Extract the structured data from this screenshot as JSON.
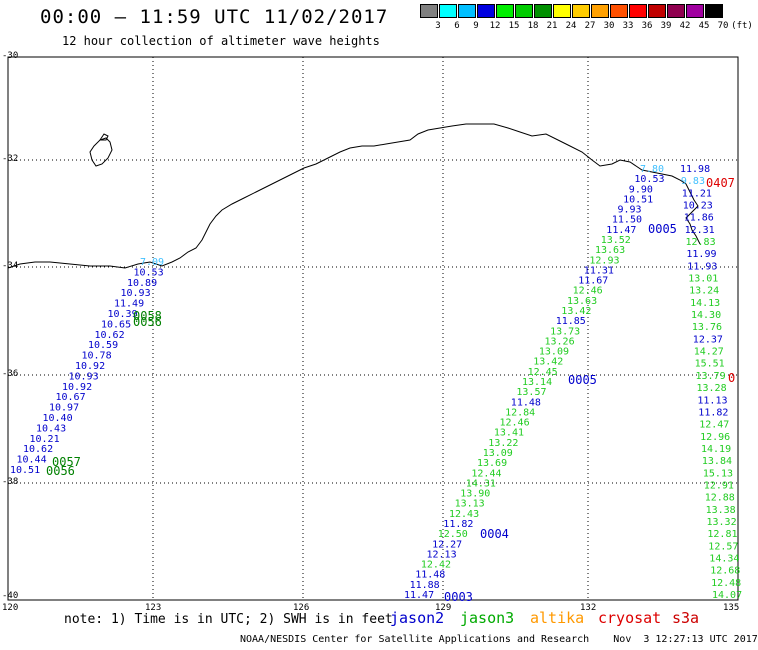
{
  "header": {
    "title": "00:00 – 11:59 UTC 11/02/2017",
    "subtitle": "12 hour collection of altimeter wave heights"
  },
  "color_scale": {
    "labels": [
      "3",
      "6",
      "9",
      "12",
      "15",
      "18",
      "21",
      "24",
      "27",
      "30",
      "33",
      "36",
      "39",
      "42",
      "45",
      "70",
      "(ft)"
    ],
    "colors": [
      "#808080",
      "#00ffff",
      "#00bfff",
      "#0000e0",
      "#00ee00",
      "#00cc00",
      "#009000",
      "#ffff00",
      "#ffcc00",
      "#ffa000",
      "#ff5000",
      "#ff0000",
      "#c00000",
      "#900050",
      "#a000a0",
      "#000000"
    ]
  },
  "axes": {
    "lat_labels": [
      "-30",
      "-32",
      "-34",
      "-36",
      "-38",
      "-40"
    ],
    "lon_labels": [
      "120",
      "123",
      "126",
      "129",
      "132",
      "135"
    ]
  },
  "tracks": [
    {
      "name": "west-track",
      "color": "#0000cc",
      "labels": [
        "7.09",
        "10.53",
        "10.89",
        "10.93",
        "11.49",
        "10.39",
        "10.65",
        "10.62",
        "10.59",
        "10.78",
        "10.92",
        "10.93",
        "10.92",
        "10.67",
        "10.97",
        "10.40",
        "10.43",
        "10.21",
        "10.62",
        "10.44",
        "10.51"
      ]
    },
    {
      "name": "mid-track",
      "color": "#0000cc",
      "labels": [
        "7.80",
        "10.53",
        "9.90",
        "10.51",
        "9.93",
        "11.50",
        "11.47",
        "13.52",
        "13.63",
        "12.93",
        "11.31",
        "11.67",
        "12.46",
        "13.63",
        "13.42",
        "11.85",
        "13.73",
        "13.26",
        "13.09",
        "13.42",
        "12.45",
        "13.14",
        "13.57",
        "11.48",
        "12.84",
        "12.46",
        "13.41",
        "13.22",
        "13.09",
        "13.69",
        "12.44",
        "14.31",
        "13.90",
        "13.13",
        "12.43",
        "11.82",
        "12.50",
        "12.27",
        "12.13",
        "12.42",
        "11.48",
        "11.88",
        "11.47"
      ]
    },
    {
      "name": "east-track",
      "color": "#0000cc",
      "labels": [
        "11.98",
        "9.83",
        "11.21",
        "10.23",
        "11.86",
        "12.31",
        "12.83",
        "11.99",
        "11.93",
        "13.01",
        "13.24",
        "14.13",
        "14.30",
        "13.76",
        "12.37",
        "14.27",
        "15.51",
        "13.79",
        "13.28",
        "11.13",
        "11.82",
        "12.47",
        "12.96",
        "14.19",
        "13.84",
        "15.13",
        "12.91",
        "12.88",
        "13.38",
        "13.32",
        "12.81",
        "12.57",
        "14.34",
        "12.68",
        "12.48",
        "14.07"
      ]
    }
  ],
  "time_tags": [
    {
      "text": "0058",
      "color": "#008000"
    },
    {
      "text": "0056",
      "color": "#008000"
    },
    {
      "text": "0057",
      "color": "#008000"
    },
    {
      "text": "0056",
      "color": "#008000"
    },
    {
      "text": "0005",
      "color": "#0000cc"
    },
    {
      "text": "0004",
      "color": "#0000cc"
    },
    {
      "text": "0003",
      "color": "#0000cc"
    },
    {
      "text": "0005",
      "color": "#0000cc"
    },
    {
      "text": "0407",
      "color": "#dd0000"
    },
    {
      "text": "0",
      "color": "#dd0000"
    }
  ],
  "footer": {
    "note": "note: 1) Time is in UTC; 2) SWH is in feet",
    "satellites": [
      {
        "name": "jason2",
        "color": "#0000cc"
      },
      {
        "name": "jason3",
        "color": "#00aa00"
      },
      {
        "name": "altika",
        "color": "#ff9900"
      },
      {
        "name": "cryosat",
        "color": "#dd0000"
      },
      {
        "name": "s3a",
        "color": "#cc0000"
      }
    ],
    "credit": "NOAA/NESDIS Center for Satellite Applications and Research    Nov  3 12:27:13 UTC 2017"
  }
}
